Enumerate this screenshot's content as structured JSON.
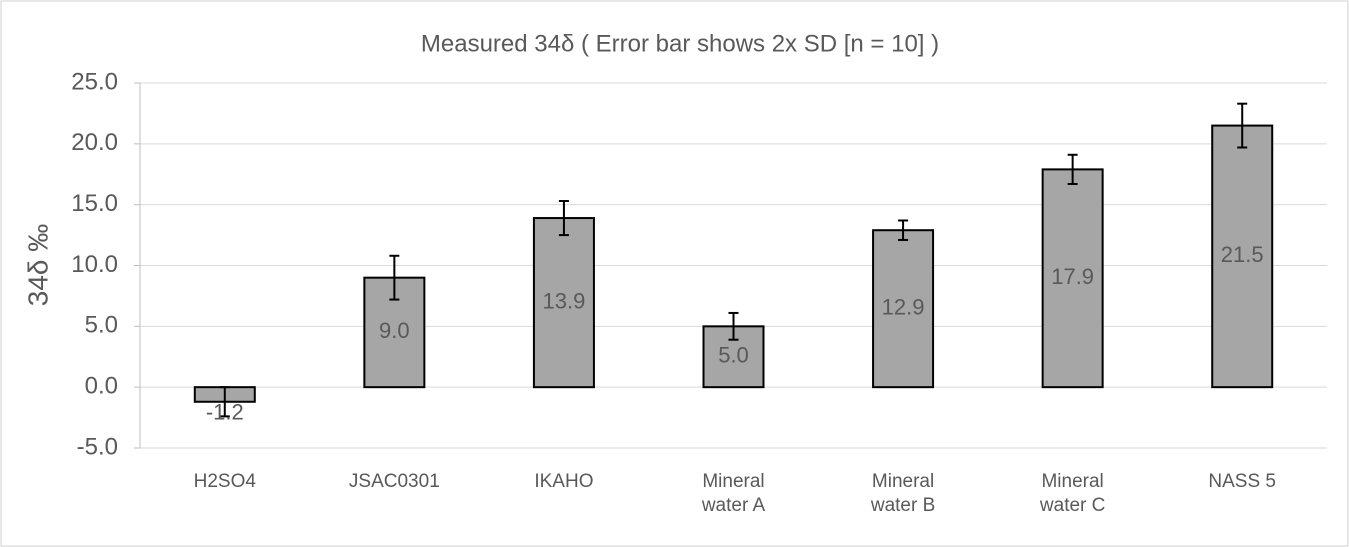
{
  "chart_data": {
    "type": "bar",
    "title": "Measured 34δ ( Error bar shows 2x SD [n = 10] )",
    "y_label": "34δ ‰",
    "categories": [
      "H2SO4",
      "JSAC0301",
      "IKAHO",
      "Mineral\nwater A",
      "Mineral\nwater B",
      "Mineral\nwater C",
      "NASS 5"
    ],
    "values": [
      -1.2,
      9.0,
      13.9,
      5.0,
      12.9,
      17.9,
      21.5
    ],
    "value_labels": [
      "-1.2",
      "9.0",
      "13.9",
      "5.0",
      "12.9",
      "17.9",
      "21.5"
    ],
    "errors": [
      1.2,
      1.8,
      1.4,
      1.1,
      0.8,
      1.2,
      1.8
    ],
    "color": "#a6a6a6",
    "ylim": [
      -5,
      25
    ],
    "yticks": [
      {
        "value": -5,
        "label": "-5.0"
      },
      {
        "value": 0,
        "label": "0.0"
      },
      {
        "value": 5,
        "label": "5.0"
      },
      {
        "value": 10,
        "label": "10.0"
      },
      {
        "value": 15,
        "label": "15.0"
      },
      {
        "value": 20,
        "label": "20.0"
      },
      {
        "value": 25,
        "label": "25.0"
      }
    ],
    "grid": true
  }
}
